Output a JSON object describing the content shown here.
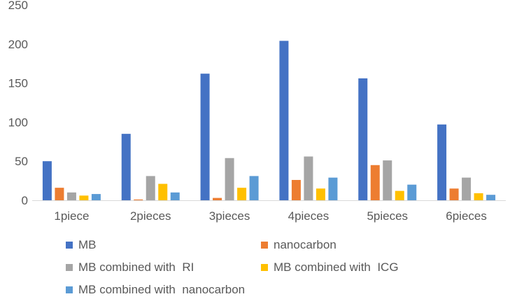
{
  "chart_data": {
    "type": "bar",
    "title": "",
    "xlabel": "",
    "ylabel": "",
    "ylim": [
      0,
      250
    ],
    "yticks": [
      0,
      50,
      100,
      150,
      200,
      250
    ],
    "grid": false,
    "legend_position": "bottom",
    "categories": [
      "1piece",
      "2pieces",
      "3pieces",
      "4pieces",
      "5pieces",
      "6pieces"
    ],
    "series": [
      {
        "name": "MB",
        "color": "#4472C4",
        "values": [
          50,
          85,
          162,
          204,
          156,
          97
        ]
      },
      {
        "name": "nanocarbon",
        "color": "#ED7D31",
        "values": [
          16,
          1,
          3,
          26,
          45,
          15
        ]
      },
      {
        "name": "MB combined with  RI",
        "color": "#A5A5A5",
        "values": [
          10,
          31,
          54,
          56,
          51,
          29
        ]
      },
      {
        "name": "MB combined with  ICG",
        "color": "#FFC000",
        "values": [
          6,
          21,
          16,
          15,
          12,
          9
        ]
      },
      {
        "name": "MB combined with  nanocarbon",
        "color": "#5B9BD5",
        "values": [
          8,
          10,
          31,
          29,
          20,
          7
        ]
      }
    ]
  }
}
